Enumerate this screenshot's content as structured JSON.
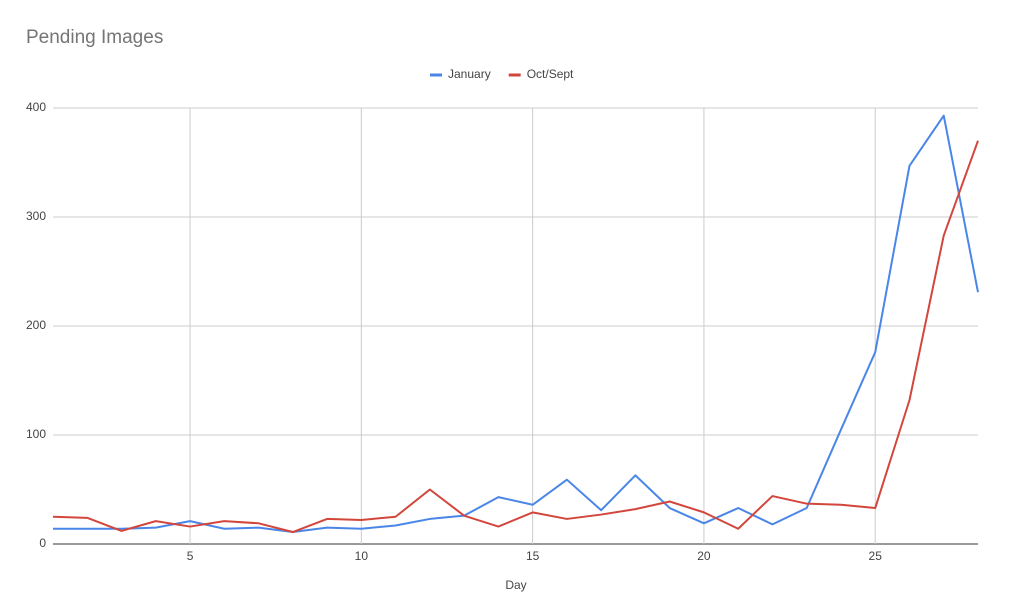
{
  "chart_data": {
    "type": "line",
    "title": "Pending Images",
    "x_label": "Day",
    "x": [
      1,
      2,
      3,
      4,
      5,
      6,
      7,
      8,
      9,
      10,
      11,
      12,
      13,
      14,
      15,
      16,
      17,
      18,
      19,
      20,
      21,
      22,
      23,
      24,
      25,
      26,
      27,
      28
    ],
    "series": [
      {
        "name": "January",
        "color": "#4a86e8",
        "values": [
          14,
          14,
          14,
          15,
          21,
          14,
          15,
          11,
          15,
          14,
          17,
          23,
          26,
          43,
          36,
          59,
          31,
          63,
          33,
          19,
          33,
          18,
          33,
          105,
          176,
          347,
          393,
          231
        ]
      },
      {
        "name": "Oct/Sept",
        "color": "#d2463c",
        "values": [
          25,
          24,
          12,
          21,
          16,
          21,
          19,
          11,
          23,
          22,
          25,
          50,
          26,
          16,
          29,
          23,
          27,
          32,
          39,
          29,
          14,
          44,
          37,
          36,
          33,
          132,
          283,
          370
        ]
      }
    ],
    "xlim": [
      1,
      28
    ],
    "xticks": [
      5,
      10,
      15,
      20,
      25
    ],
    "ylim": [
      0,
      400
    ],
    "yticks": [
      0,
      100,
      200,
      300,
      400
    ],
    "grid": true,
    "legend": "top"
  }
}
